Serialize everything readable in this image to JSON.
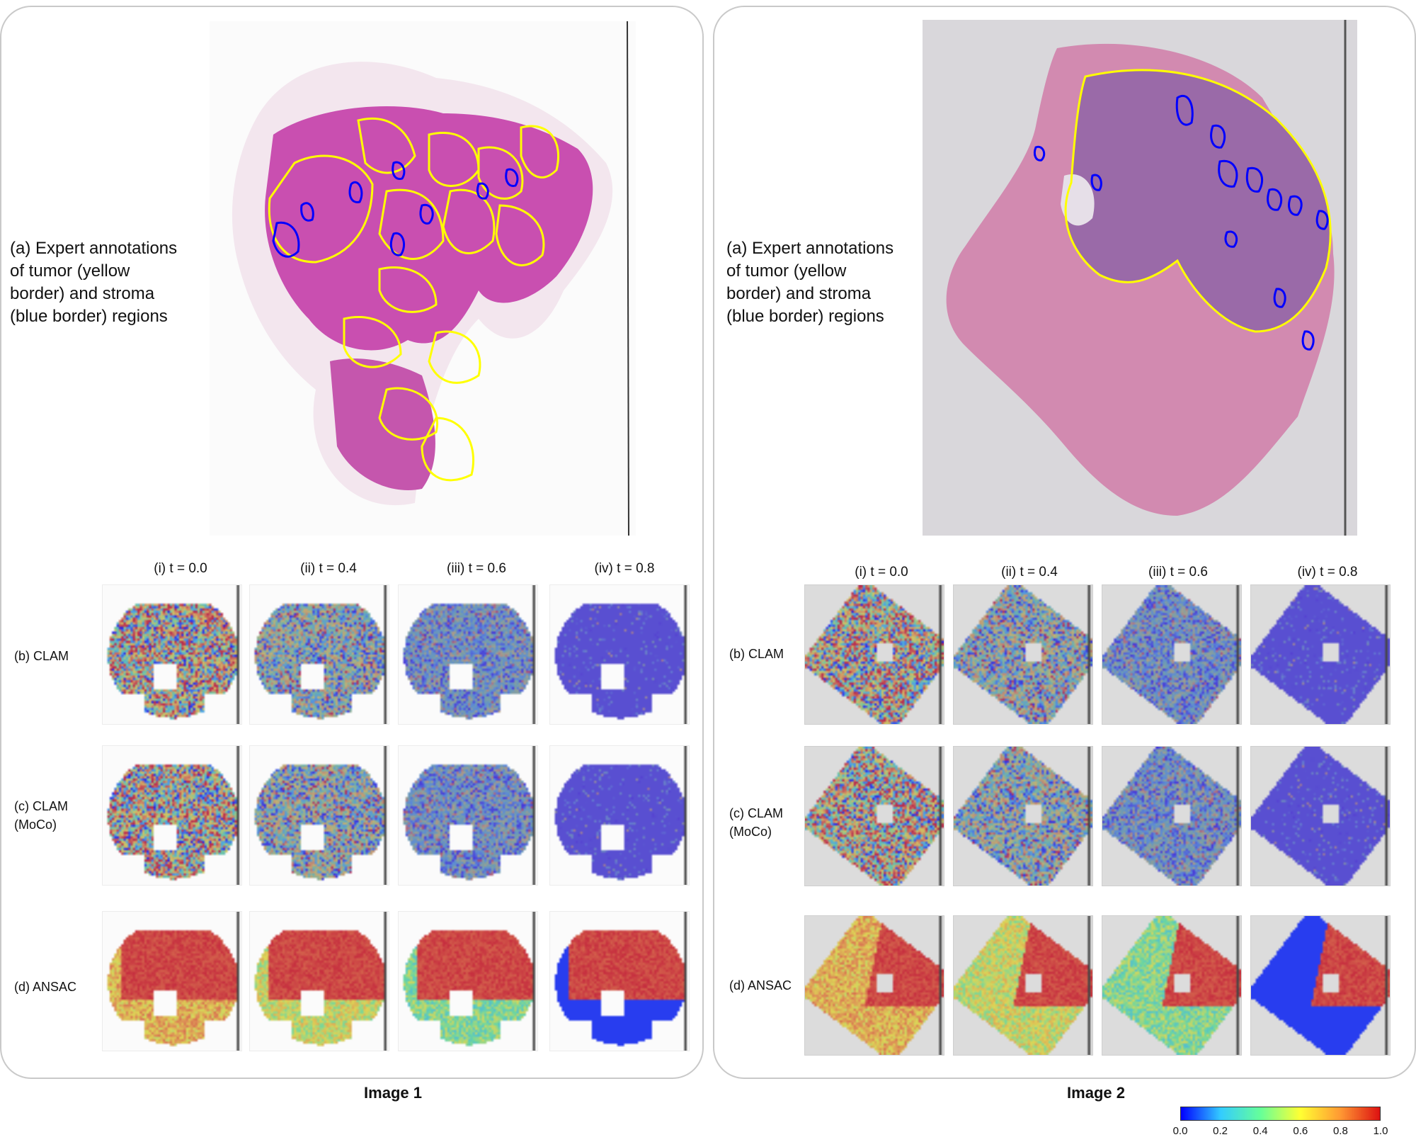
{
  "images": [
    {
      "title": "Image 1",
      "annotation_caption": "(a) Expert annotations\nof tumor (yellow\nborder) and stroma\n(blue border) regions",
      "col_headers": [
        "(i) t = 0.0",
        "(ii) t = 0.4",
        "(iii) t = 0.6",
        "(iv) t = 0.8"
      ],
      "rows": [
        {
          "label": "(b) CLAM"
        },
        {
          "label": "(c) CLAM\n(MoCo)"
        },
        {
          "label": "(d) ANSAC"
        }
      ]
    },
    {
      "title": "Image 2",
      "annotation_caption": "(a) Expert annotations\nof tumor (yellow\nborder) and stroma\n(blue border) regions",
      "col_headers": [
        "(i) t = 0.0",
        "(ii) t = 0.4",
        "(iii) t = 0.6",
        "(iv) t = 0.8"
      ],
      "rows": [
        {
          "label": "(b) CLAM"
        },
        {
          "label": "(c) CLAM\n(MoCo)"
        },
        {
          "label": "(d) ANSAC"
        }
      ]
    }
  ],
  "colorbar": {
    "ticks": [
      "0.0",
      "0.2",
      "0.4",
      "0.6",
      "0.8",
      "1.0"
    ],
    "colors": [
      "#0000ff",
      "#33ccff",
      "#66ff99",
      "#ffff33",
      "#ff9933",
      "#dd1111"
    ]
  },
  "colors": {
    "tumor_border": "#ffff00",
    "stroma_border": "#0000ff",
    "tissue_he_1": "#c94fb0",
    "tissue_he_2": "#cf7fa8"
  }
}
